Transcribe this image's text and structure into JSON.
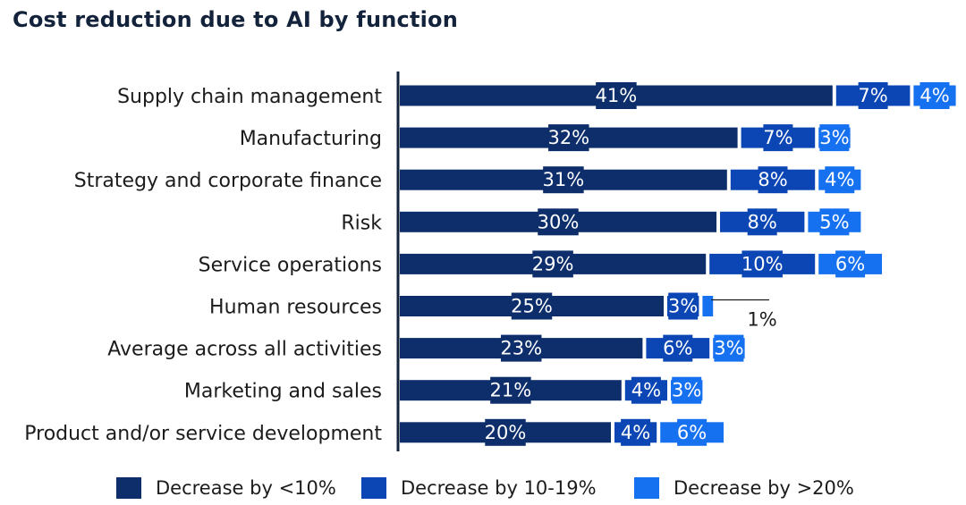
{
  "chart_data": {
    "type": "bar",
    "orientation": "horizontal",
    "stacked": true,
    "title": "Cost reduction due to AI by function",
    "categories": [
      "Supply chain management",
      "Manufacturing",
      "Strategy and corporate finance",
      "Risk",
      "Service operations",
      "Human resources",
      "Average across all activities",
      "Marketing and sales",
      "Product and/or service development"
    ],
    "series": [
      {
        "name": "Decrease by <10%",
        "values": [
          41,
          32,
          31,
          30,
          29,
          25,
          23,
          21,
          20
        ],
        "color": "#0d2e6b"
      },
      {
        "name": "Decrease by 10-19%",
        "values": [
          7,
          7,
          8,
          8,
          10,
          3,
          6,
          4,
          4
        ],
        "color": "#0b46b4"
      },
      {
        "name": "Decrease by >20%",
        "values": [
          4,
          3,
          4,
          5,
          6,
          1,
          3,
          3,
          6
        ],
        "color": "#1671f0"
      }
    ],
    "value_suffix": "%",
    "legend_position": "bottom",
    "grid": false
  }
}
